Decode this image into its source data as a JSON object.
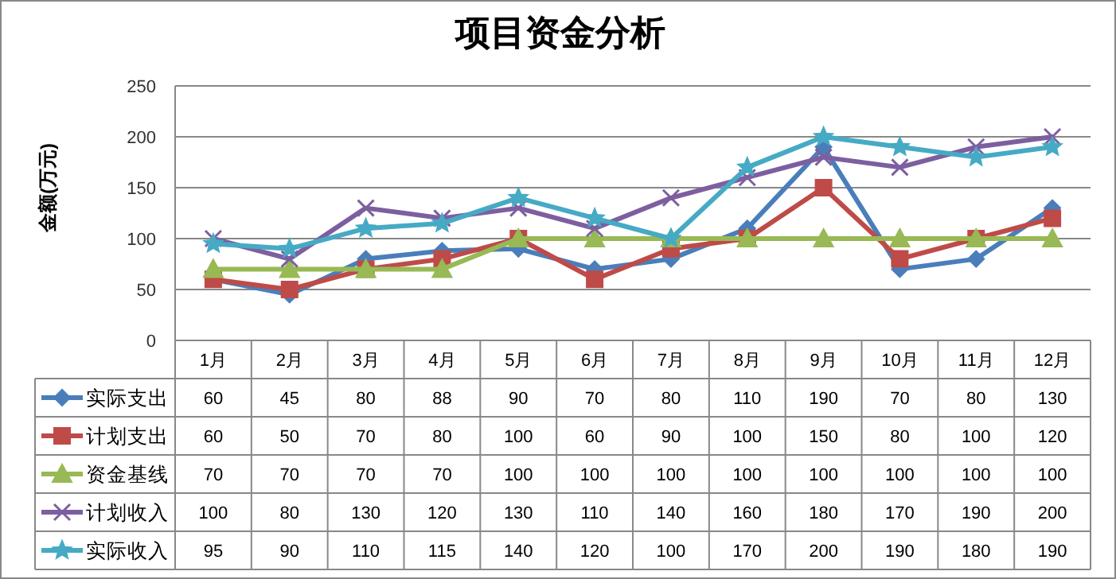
{
  "chart_data": {
    "type": "line",
    "title": "项目资金分析",
    "ylabel": "金额(万元)",
    "categories": [
      "1月",
      "2月",
      "3月",
      "4月",
      "5月",
      "6月",
      "7月",
      "8月",
      "9月",
      "10月",
      "11月",
      "12月"
    ],
    "ylim": [
      0,
      250
    ],
    "yticks": [
      0,
      50,
      100,
      150,
      200,
      250
    ],
    "grid": "y",
    "legend": "bottom",
    "data_labels": true,
    "series": [
      {
        "name": "实际支出",
        "color": "#4a7ebb",
        "marker": "diamond",
        "values": [
          60,
          45,
          80,
          88,
          90,
          70,
          80,
          110,
          190,
          70,
          80,
          130
        ]
      },
      {
        "name": "计划支出",
        "color": "#be4b48",
        "marker": "square",
        "values": [
          60,
          50,
          70,
          80,
          100,
          60,
          90,
          100,
          150,
          80,
          100,
          120
        ]
      },
      {
        "name": "资金基线",
        "color": "#98b954",
        "marker": "triangle",
        "values": [
          70,
          70,
          70,
          70,
          100,
          100,
          100,
          100,
          100,
          100,
          100,
          100
        ]
      },
      {
        "name": "计划收入",
        "color": "#7d5fa0",
        "marker": "cross",
        "values": [
          100,
          80,
          130,
          120,
          130,
          110,
          140,
          160,
          180,
          170,
          190,
          200
        ]
      },
      {
        "name": "实际收入",
        "color": "#46aac5",
        "marker": "star",
        "values": [
          95,
          90,
          110,
          115,
          140,
          120,
          100,
          170,
          200,
          190,
          180,
          190
        ]
      }
    ]
  }
}
